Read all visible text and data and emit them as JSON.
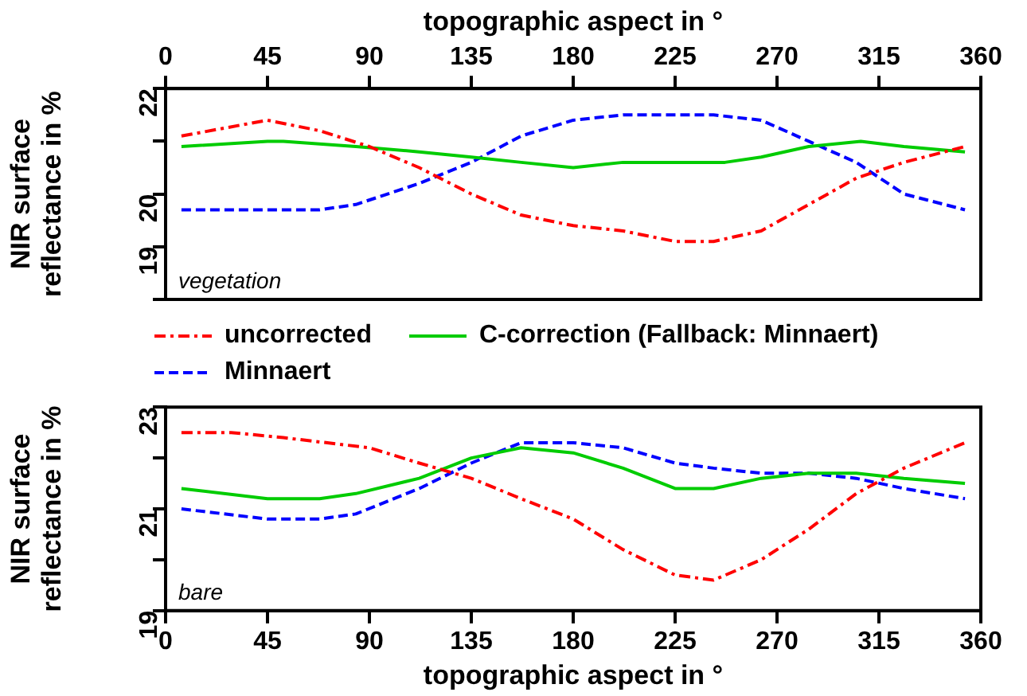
{
  "chart_data": [
    {
      "type": "line",
      "ylabel": "NIR surface\nreflectance in %",
      "xlabel": "topographic aspect in °",
      "xlim": [
        0,
        360
      ],
      "xticks": [
        0,
        45,
        90,
        135,
        180,
        225,
        270,
        315,
        360
      ],
      "ylim": [
        18,
        22
      ],
      "yticks": [
        {
          "value": 18,
          "label": null
        },
        19,
        20,
        {
          "value": 21,
          "label": null
        },
        22
      ],
      "legend": "bottom",
      "grid": false,
      "marker": "none",
      "annotations": [
        "vegetation"
      ],
      "series": [
        {
          "name": "uncorrected",
          "color": "#ff0000",
          "line_style": "dashdot",
          "x": [
            7,
            45,
            68,
            90,
            112,
            135,
            157,
            180,
            202,
            225,
            242,
            263,
            284,
            305,
            326,
            353
          ],
          "values": [
            21.1,
            21.4,
            21.2,
            20.9,
            20.5,
            20.0,
            19.6,
            19.4,
            19.3,
            19.1,
            19.1,
            19.3,
            19.8,
            20.3,
            20.6,
            20.9
          ]
        },
        {
          "name": "C-correction (Fallback: Minnaert)",
          "color": "#00cc00",
          "line_style": "solid",
          "x": [
            7,
            45,
            52,
            84,
            112,
            135,
            157,
            180,
            202,
            225,
            247,
            263,
            284,
            307,
            326,
            353
          ],
          "values": [
            20.9,
            21.0,
            21.0,
            20.9,
            20.8,
            20.7,
            20.6,
            20.5,
            20.6,
            20.6,
            20.6,
            20.7,
            20.9,
            21.0,
            20.9,
            20.8
          ]
        },
        {
          "name": "Minnaert",
          "color": "#0000ff",
          "line_style": "dashed",
          "x": [
            7,
            45,
            68,
            84,
            112,
            135,
            157,
            180,
            202,
            225,
            242,
            263,
            284,
            305,
            326,
            353
          ],
          "values": [
            19.7,
            19.7,
            19.7,
            19.8,
            20.2,
            20.6,
            21.1,
            21.4,
            21.5,
            21.5,
            21.5,
            21.4,
            21.0,
            20.6,
            20.0,
            19.7
          ]
        }
      ]
    },
    {
      "type": "line",
      "ylabel": "NIR surface\nreflectance in %",
      "xlabel": "topographic aspect in °",
      "xlim": [
        0,
        360
      ],
      "xticks": [
        0,
        45,
        90,
        135,
        180,
        225,
        270,
        315,
        360
      ],
      "ylim": [
        19,
        23
      ],
      "yticks": [
        19,
        {
          "value": 20,
          "label": null
        },
        21,
        {
          "value": 22,
          "label": null
        },
        23
      ],
      "grid": false,
      "marker": "none",
      "annotations": [
        "bare"
      ],
      "series": [
        {
          "color": "#ff0000",
          "line_style": "dashdot",
          "x": [
            7,
            29,
            52,
            90,
            112,
            135,
            157,
            180,
            202,
            225,
            242,
            263,
            284,
            305,
            326,
            353
          ],
          "values": [
            22.5,
            22.5,
            22.4,
            22.2,
            21.9,
            21.6,
            21.2,
            20.8,
            20.2,
            19.7,
            19.6,
            20.0,
            20.6,
            21.3,
            21.8,
            22.3
          ]
        },
        {
          "color": "#00cc00",
          "line_style": "solid",
          "x": [
            7,
            45,
            68,
            84,
            112,
            135,
            157,
            180,
            202,
            225,
            242,
            263,
            284,
            305,
            326,
            353
          ],
          "values": [
            21.4,
            21.2,
            21.2,
            21.3,
            21.6,
            22.0,
            22.2,
            22.1,
            21.8,
            21.4,
            21.4,
            21.6,
            21.7,
            21.7,
            21.6,
            21.5
          ]
        },
        {
          "color": "#0000ff",
          "line_style": "dashed",
          "x": [
            7,
            45,
            68,
            84,
            112,
            135,
            157,
            180,
            202,
            225,
            242,
            263,
            284,
            305,
            326,
            353
          ],
          "values": [
            21.0,
            20.8,
            20.8,
            20.9,
            21.4,
            21.9,
            22.3,
            22.3,
            22.2,
            21.9,
            21.8,
            21.7,
            21.7,
            21.6,
            21.4,
            21.2
          ]
        }
      ]
    }
  ]
}
